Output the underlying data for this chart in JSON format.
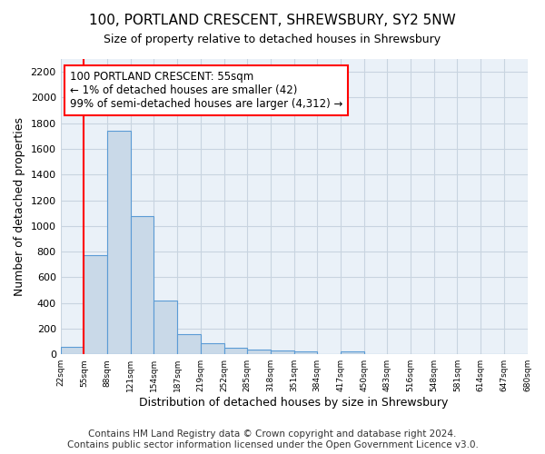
{
  "title": "100, PORTLAND CRESCENT, SHREWSBURY, SY2 5NW",
  "subtitle": "Size of property relative to detached houses in Shrewsbury",
  "xlabel": "Distribution of detached houses by size in Shrewsbury",
  "ylabel": "Number of detached properties",
  "bin_labels": [
    "22sqm",
    "55sqm",
    "88sqm",
    "121sqm",
    "154sqm",
    "187sqm",
    "219sqm",
    "252sqm",
    "285sqm",
    "318sqm",
    "351sqm",
    "384sqm",
    "417sqm",
    "450sqm",
    "483sqm",
    "516sqm",
    "548sqm",
    "581sqm",
    "614sqm",
    "647sqm",
    "680sqm"
  ],
  "bar_values": [
    55,
    770,
    1740,
    1075,
    420,
    160,
    85,
    50,
    40,
    30,
    25,
    0,
    20,
    0,
    0,
    0,
    0,
    0,
    0,
    0
  ],
  "bar_color": "#c9d9e8",
  "bar_edgecolor": "#5b9bd5",
  "bar_linewidth": 0.8,
  "vline_x": 1,
  "vline_color": "red",
  "vline_linewidth": 1.5,
  "annotation_text": "100 PORTLAND CRESCENT: 55sqm\n← 1% of detached houses are smaller (42)\n99% of semi-detached houses are larger (4,312) →",
  "annotation_box_color": "white",
  "annotation_box_edgecolor": "red",
  "annotation_fontsize": 8.5,
  "ylim": [
    0,
    2300
  ],
  "yticks": [
    0,
    200,
    400,
    600,
    800,
    1000,
    1200,
    1400,
    1600,
    1800,
    2000,
    2200
  ],
  "grid_color": "#c8d4e0",
  "background_color": "#eaf1f8",
  "footer_text": "Contains HM Land Registry data © Crown copyright and database right 2024.\nContains public sector information licensed under the Open Government Licence v3.0.",
  "title_fontsize": 11,
  "subtitle_fontsize": 9,
  "xlabel_fontsize": 9,
  "ylabel_fontsize": 9,
  "footer_fontsize": 7.5
}
